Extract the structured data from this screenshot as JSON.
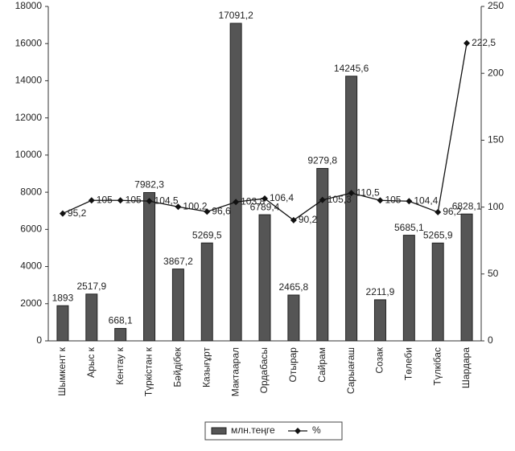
{
  "chart_data": {
    "type": "bar-line",
    "categories": [
      "Шымкент к",
      "Арыс к",
      "Кентау к",
      "Түркістан к",
      "Бәйдібек",
      "Казығұрт",
      "Мактаарал",
      "Ордабасы",
      "Отырар",
      "Сайрам",
      "Сарыағаш",
      "Созак",
      "Төлеби",
      "Түлкібас",
      "Шардара"
    ],
    "series": [
      {
        "name": "млн.теңге",
        "color": "#555555",
        "values": [
          1893,
          2517.9,
          668.1,
          7982.3,
          3867.2,
          5269.5,
          17091.2,
          6789.4,
          2465.8,
          9279.8,
          14245.6,
          2211.9,
          5685.1,
          5265.9,
          6828.1
        ],
        "value_labels": [
          "1893",
          "2517,9",
          "668,1",
          "7982,3",
          "3867,2",
          "5269,5",
          "17091,2",
          "6789,4",
          "2465,8",
          "9279,8",
          "14245,6",
          "2211,9",
          "5685,1",
          "5265,9",
          "6828,1"
        ]
      },
      {
        "name": "%",
        "color": "#111111",
        "axis": "y2",
        "values": [
          95.2,
          105,
          105,
          104.5,
          100.2,
          96.6,
          103.8,
          106.4,
          90.2,
          105.3,
          110.5,
          105,
          104.4,
          96.2,
          222.5
        ],
        "value_labels": [
          "95,2",
          "105",
          "105",
          "104,5",
          "100,2",
          "96,6",
          "103,8",
          "106,4",
          "90,2",
          "105,3",
          "110,5",
          "105",
          "104,4",
          "96,2",
          "222,5"
        ]
      }
    ],
    "ylim": [
      0,
      18000
    ],
    "yticks": [
      0,
      2000,
      4000,
      6000,
      8000,
      10000,
      12000,
      14000,
      16000,
      18000
    ],
    "y2lim": [
      0,
      250
    ],
    "y2ticks": [
      0,
      50,
      100,
      150,
      200,
      250
    ],
    "legend": "bottom"
  }
}
